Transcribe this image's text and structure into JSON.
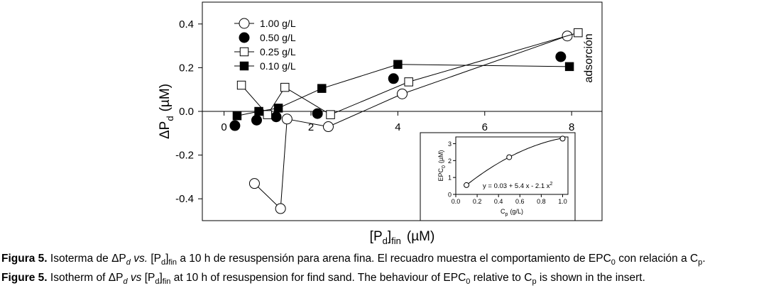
{
  "chart_data": [
    {
      "type": "scatter",
      "title": "",
      "xlabel": {
        "main": "[P",
        "sub": "d",
        "after": "]",
        "sub2": "fin",
        "unit": "(µM)"
      },
      "ylabel": {
        "main": "ΔP",
        "sub": "d",
        "unit": "(µM)"
      },
      "xlim": [
        -0.5,
        8.7
      ],
      "ylim": [
        -0.5,
        0.5
      ],
      "xticks": [
        0,
        2,
        4,
        6,
        8
      ],
      "yticks": [
        -0.4,
        -0.2,
        0.0,
        0.2,
        0.4
      ],
      "xtick_labels": [
        "0",
        "2",
        "4",
        "6",
        "8"
      ],
      "ytick_labels": [
        "-0.4",
        "-0.2",
        "0.0",
        "0.2",
        "0.4"
      ],
      "annotation": "adsorción",
      "legend_position": "top-left",
      "series": [
        {
          "name": "1.00 g/L",
          "marker": "open-circle",
          "line": true,
          "points": [
            [
              0.7,
              -0.33
            ],
            [
              1.3,
              -0.445
            ],
            [
              1.45,
              -0.035
            ],
            [
              2.4,
              -0.07
            ],
            [
              4.1,
              0.08
            ],
            [
              7.9,
              0.345
            ]
          ]
        },
        {
          "name": "0.50 g/L",
          "marker": "filled-circle",
          "line": false,
          "points": [
            [
              0.25,
              -0.065
            ],
            [
              0.75,
              -0.04
            ],
            [
              1.2,
              -0.025
            ],
            [
              2.15,
              -0.01
            ],
            [
              3.9,
              0.15
            ],
            [
              7.75,
              0.25
            ]
          ]
        },
        {
          "name": "0.25 g/L",
          "marker": "open-square",
          "line": true,
          "points": [
            [
              0.4,
              0.12
            ],
            [
              1.0,
              -0.015
            ],
            [
              1.4,
              0.11
            ],
            [
              2.45,
              -0.015
            ],
            [
              4.25,
              0.135
            ],
            [
              8.15,
              0.36
            ]
          ]
        },
        {
          "name": "0.10 g/L",
          "marker": "filled-square",
          "line": true,
          "points": [
            [
              0.3,
              -0.02
            ],
            [
              0.8,
              0.0
            ],
            [
              1.25,
              0.015
            ],
            [
              2.25,
              0.105
            ],
            [
              4.0,
              0.215
            ],
            [
              7.95,
              0.205
            ]
          ]
        }
      ]
    },
    {
      "type": "scatter",
      "title": "",
      "xlabel": {
        "main": "C",
        "sub": "p",
        "unit": "(g/L)"
      },
      "ylabel": {
        "main": "EPC",
        "sub": "0",
        "unit": "(µM)"
      },
      "xlim": [
        0,
        1.05
      ],
      "ylim": [
        0,
        3.4
      ],
      "xticks": [
        0.0,
        0.2,
        0.4,
        0.6,
        0.8,
        1.0
      ],
      "yticks": [
        0,
        1,
        2,
        3
      ],
      "xtick_labels": [
        "0.0",
        "0.2",
        "0.4",
        "0.6",
        "0.8",
        "1.0"
      ],
      "ytick_labels": [
        "0",
        "1",
        "2",
        "3"
      ],
      "equation": "y = 0.03 + 5.4 x - 2.1 x",
      "equation_sup": "2",
      "fit": {
        "a": 0.03,
        "b": 5.4,
        "c": -2.1
      },
      "points": [
        [
          0.1,
          0.55
        ],
        [
          0.5,
          2.2
        ],
        [
          1.0,
          3.3
        ]
      ]
    }
  ],
  "caption": {
    "es": {
      "label": "Figura 5.",
      "t1": " Isoterma de ΔP",
      "s1": "d",
      "t2": " vs.",
      "t3": " [P",
      "s2": "d",
      "t4": "]",
      "s3": "fin",
      "t5": " a 10 h de resuspensión para arena fina. El recuadro muestra el comportamiento de EPC",
      "s4": "0",
      "t6": " con relación a C",
      "s5": "p",
      "t7": "."
    },
    "en": {
      "label": "Figure 5.",
      "t1": " Isotherm of ΔP",
      "s1": "d",
      "t2": " vs",
      "t3": " [P",
      "s2": "d",
      "t4": "]",
      "s3": "fin",
      "t5": " at 10 h of resuspension for find sand. The behaviour of EPC",
      "s4": "0",
      "t6": " relative to C",
      "s5": "p",
      "t7": " is shown in the insert."
    }
  }
}
